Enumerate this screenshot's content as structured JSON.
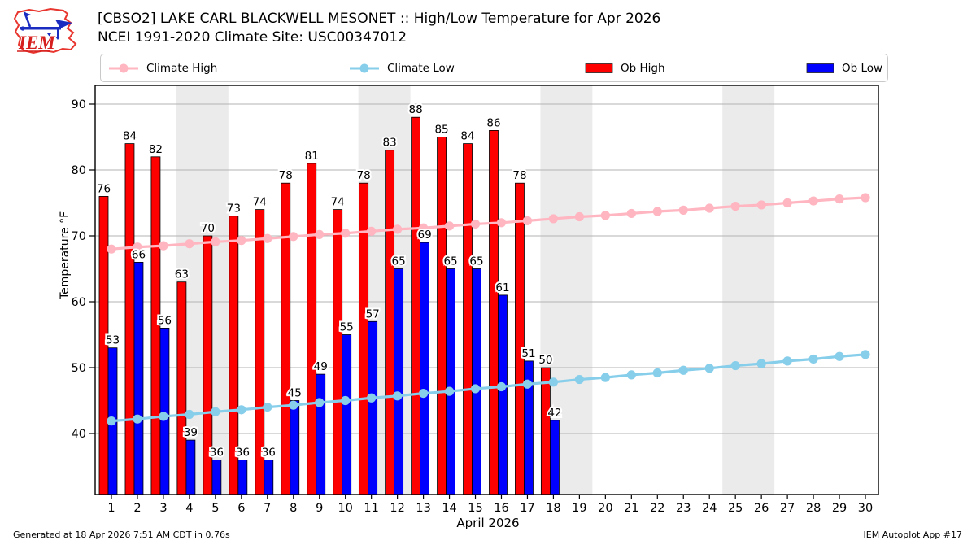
{
  "header": {
    "title_line1": "[CBSO2] LAKE CARL BLACKWELL MESONET :: High/Low Temperature for Apr 2026",
    "title_line2": "NCEI 1991-2020 Climate Site: USC00347012",
    "logo_text": "IEM"
  },
  "legend": {
    "items": [
      {
        "label": "Climate High",
        "type": "line",
        "color": "#ffb6c1"
      },
      {
        "label": "Climate Low",
        "type": "line",
        "color": "#87ceeb"
      },
      {
        "label": "Ob High",
        "type": "patch",
        "color": "#ff0000"
      },
      {
        "label": "Ob Low",
        "type": "patch",
        "color": "#0000ff"
      }
    ]
  },
  "footer": {
    "generated": "Generated at 18 Apr 2026 7:51 AM CDT in 0.76s",
    "app": "IEM Autoplot App #17"
  },
  "chart_data": {
    "type": "bar",
    "title": "[CBSO2] LAKE CARL BLACKWELL MESONET :: High/Low Temperature for Apr 2026",
    "subtitle": "NCEI 1991-2020 Climate Site: USC00347012",
    "xlabel": "April 2026",
    "ylabel": "Temperature °F",
    "ylim": [
      30.7,
      92.9
    ],
    "yticks": [
      40,
      50,
      60,
      70,
      80,
      90
    ],
    "x_days": [
      1,
      2,
      3,
      4,
      5,
      6,
      7,
      8,
      9,
      10,
      11,
      12,
      13,
      14,
      15,
      16,
      17,
      18,
      19,
      20,
      21,
      22,
      23,
      24,
      25,
      26,
      27,
      28,
      29,
      30
    ],
    "weekend_bands": [
      [
        3.5,
        5.5
      ],
      [
        10.5,
        12.5
      ],
      [
        17.5,
        19.5
      ],
      [
        24.5,
        26.5
      ]
    ],
    "grid": true,
    "legend_position": "top",
    "colors": {
      "weekend_band": "#ebebeb",
      "gridline": "#b3b3b3",
      "frame": "#000000",
      "label_text": "#000000",
      "label_halo": "#ffffff"
    },
    "series": [
      {
        "name": "Ob High",
        "type": "bar",
        "color": "#ff0000",
        "days": [
          1,
          2,
          3,
          4,
          5,
          6,
          7,
          8,
          9,
          10,
          11,
          12,
          13,
          14,
          15,
          16,
          17,
          18
        ],
        "values": [
          76,
          84,
          82,
          63,
          70,
          73,
          74,
          78,
          81,
          74,
          78,
          83,
          88,
          85,
          84,
          86,
          78,
          50
        ]
      },
      {
        "name": "Ob Low",
        "type": "bar",
        "color": "#0000ff",
        "days": [
          1,
          2,
          3,
          4,
          5,
          6,
          7,
          8,
          9,
          10,
          11,
          12,
          13,
          14,
          15,
          16,
          17,
          18
        ],
        "values": [
          53,
          66,
          56,
          39,
          36,
          36,
          36,
          45,
          49,
          55,
          57,
          65,
          69,
          65,
          65,
          61,
          51,
          42
        ]
      },
      {
        "name": "Climate High",
        "type": "line",
        "color": "#ffb6c1",
        "days": [
          1,
          2,
          3,
          4,
          5,
          6,
          7,
          8,
          9,
          10,
          11,
          12,
          13,
          14,
          15,
          16,
          17,
          18,
          19,
          20,
          21,
          22,
          23,
          24,
          25,
          26,
          27,
          28,
          29,
          30
        ],
        "values": [
          68.0,
          68.3,
          68.5,
          68.8,
          69.1,
          69.3,
          69.6,
          69.9,
          70.2,
          70.4,
          70.7,
          71.0,
          71.2,
          71.5,
          71.8,
          72.0,
          72.3,
          72.6,
          72.9,
          73.1,
          73.4,
          73.7,
          73.9,
          74.2,
          74.5,
          74.7,
          75.0,
          75.3,
          75.6,
          75.8
        ]
      },
      {
        "name": "Climate Low",
        "type": "line",
        "color": "#87ceeb",
        "days": [
          1,
          2,
          3,
          4,
          5,
          6,
          7,
          8,
          9,
          10,
          11,
          12,
          13,
          14,
          15,
          16,
          17,
          18,
          19,
          20,
          21,
          22,
          23,
          24,
          25,
          26,
          27,
          28,
          29,
          30
        ],
        "values": [
          41.9,
          42.2,
          42.6,
          42.9,
          43.3,
          43.6,
          44.0,
          44.3,
          44.7,
          45.0,
          45.4,
          45.7,
          46.1,
          46.4,
          46.8,
          47.1,
          47.5,
          47.8,
          48.2,
          48.5,
          48.9,
          49.2,
          49.6,
          49.9,
          50.3,
          50.6,
          51.0,
          51.3,
          51.7,
          52.0
        ]
      }
    ]
  }
}
